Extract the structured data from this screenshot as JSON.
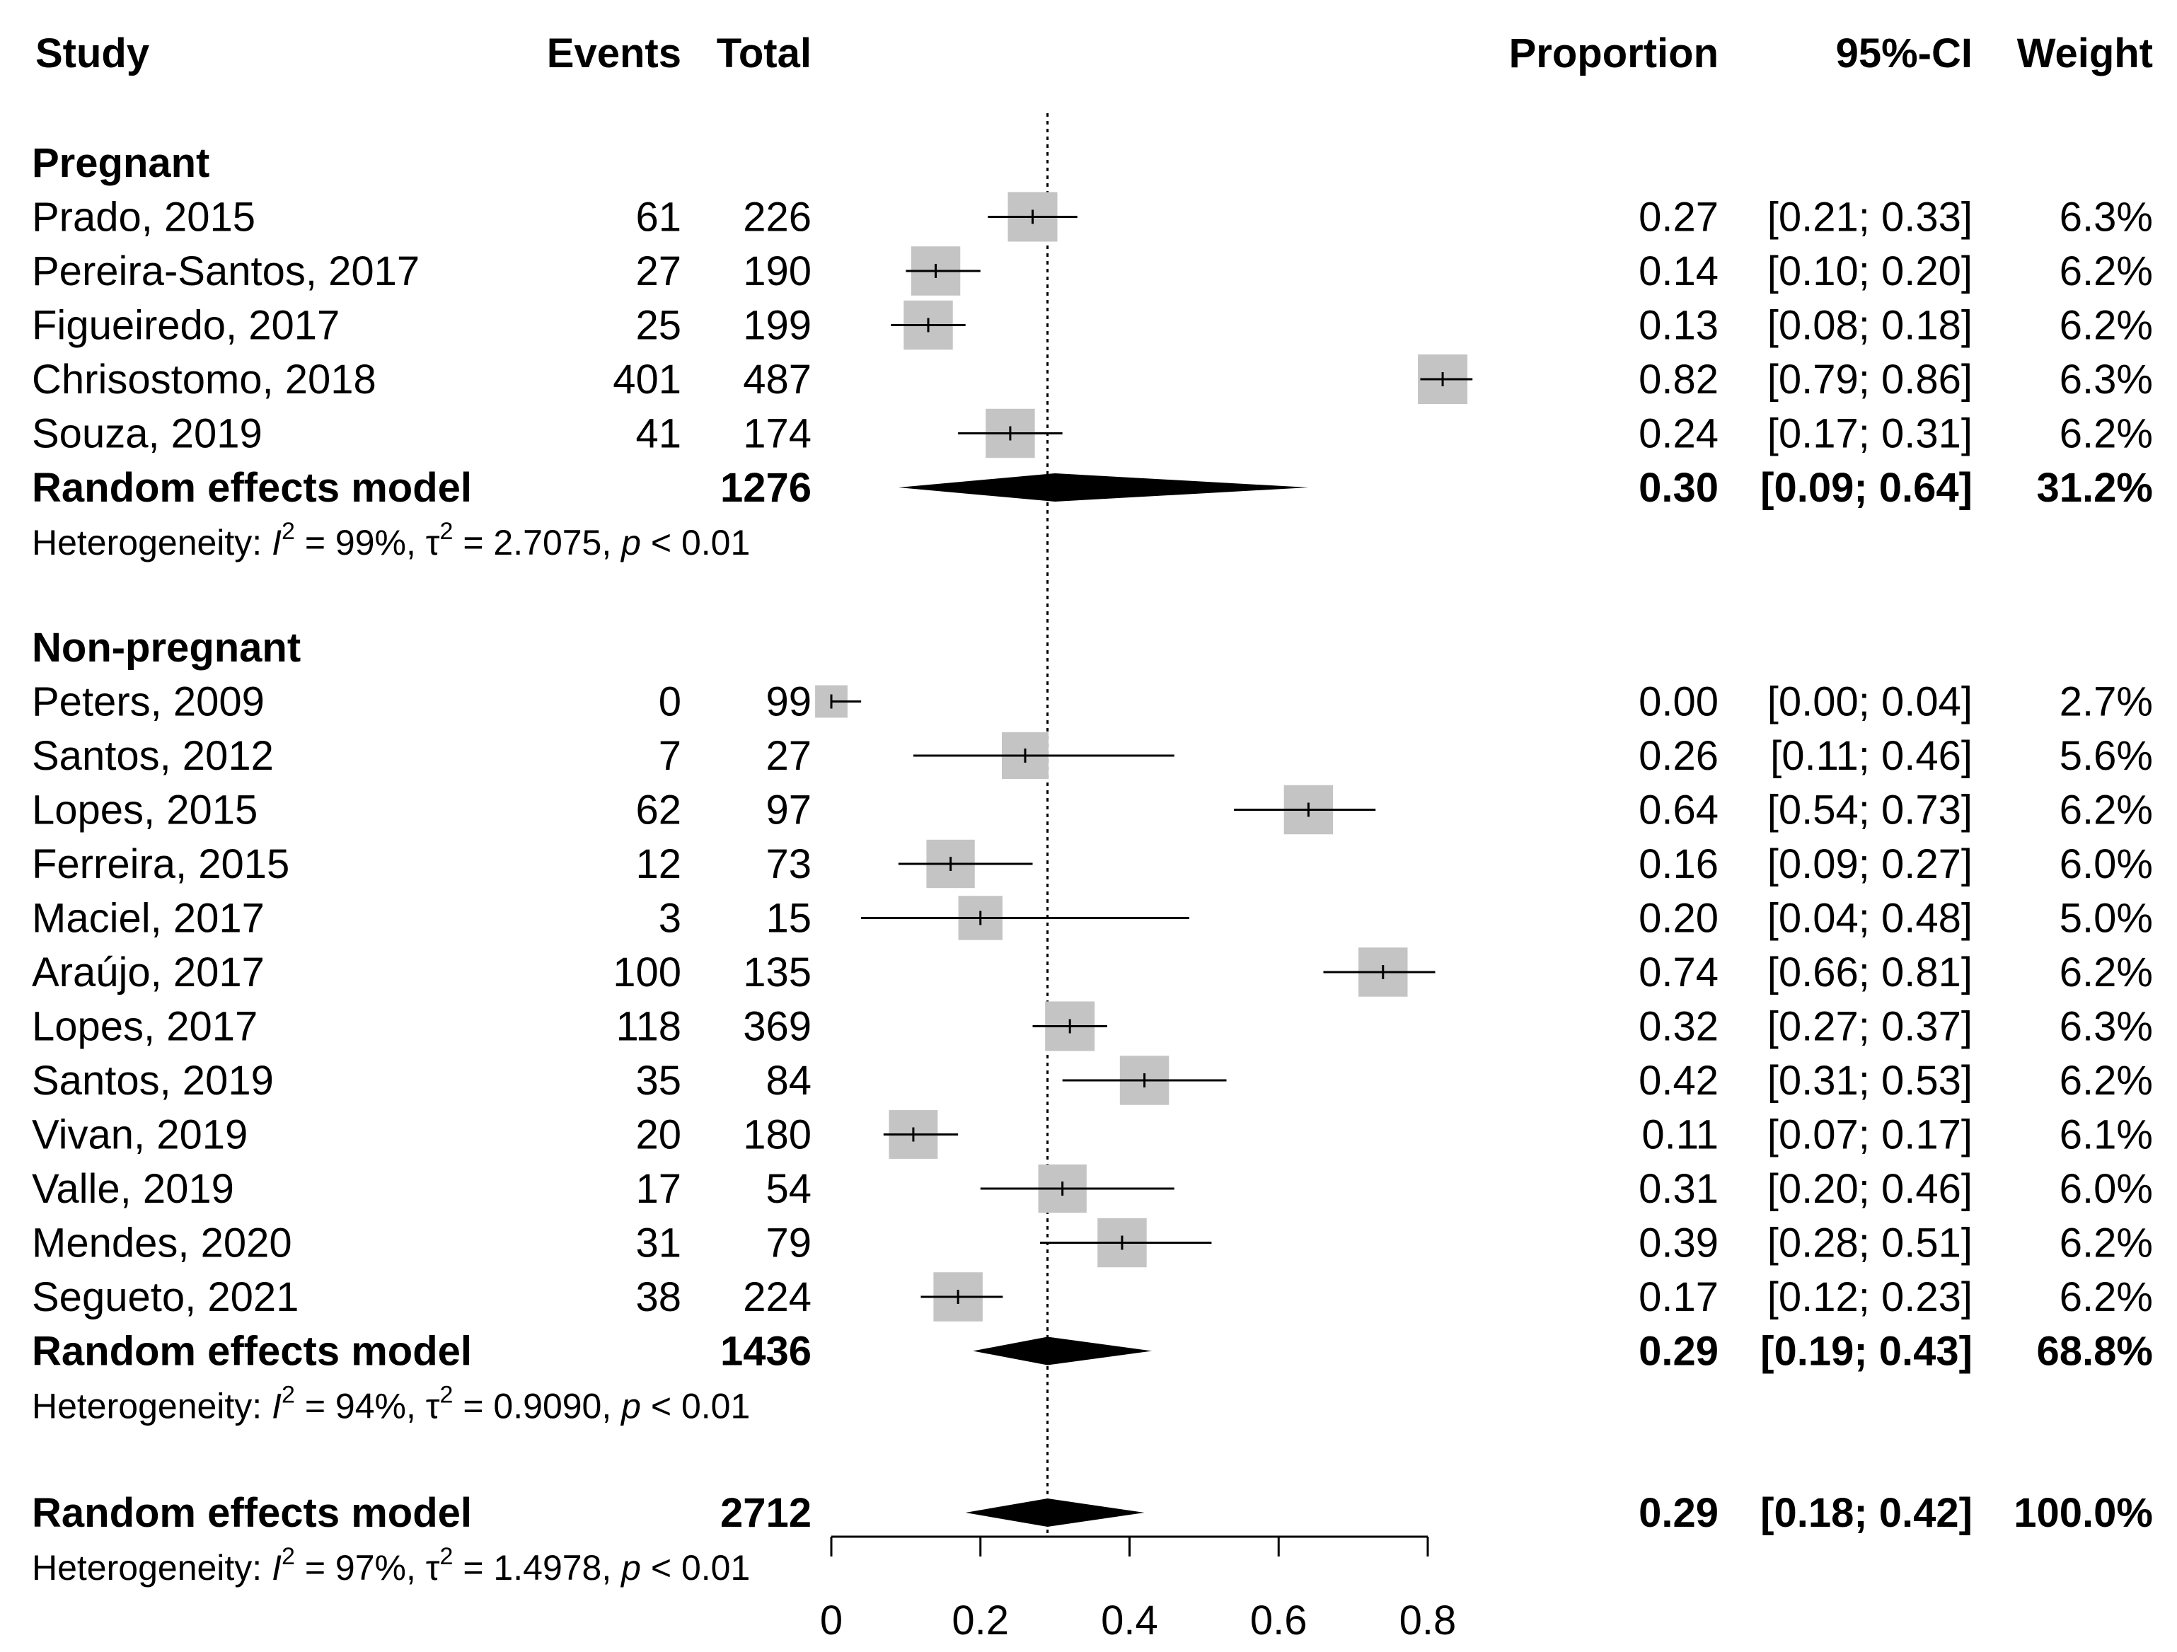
{
  "chart_data": {
    "type": "forest",
    "headers": {
      "study": "Study",
      "events": "Events",
      "total": "Total",
      "proportion": "Proportion",
      "ci": "95%-CI",
      "weight": "Weight"
    },
    "groups": [
      {
        "name": "Pregnant",
        "studies": [
          {
            "label": "Prado, 2015",
            "events": "61",
            "total": "226",
            "est": 0.27,
            "lo": 0.21,
            "hi": 0.33,
            "prop_text": "0.27",
            "ci_text": "[0.21; 0.33]",
            "weight": "6.3%",
            "w": 6.3
          },
          {
            "label": "Pereira-Santos, 2017",
            "events": "27",
            "total": "190",
            "est": 0.14,
            "lo": 0.1,
            "hi": 0.2,
            "prop_text": "0.14",
            "ci_text": "[0.10; 0.20]",
            "weight": "6.2%",
            "w": 6.2
          },
          {
            "label": "Figueiredo, 2017",
            "events": "25",
            "total": "199",
            "est": 0.13,
            "lo": 0.08,
            "hi": 0.18,
            "prop_text": "0.13",
            "ci_text": "[0.08; 0.18]",
            "weight": "6.2%",
            "w": 6.2
          },
          {
            "label": "Chrisostomo, 2018",
            "events": "401",
            "total": "487",
            "est": 0.82,
            "lo": 0.79,
            "hi": 0.86,
            "prop_text": "0.82",
            "ci_text": "[0.79; 0.86]",
            "weight": "6.3%",
            "w": 6.3
          },
          {
            "label": "Souza, 2019",
            "events": "41",
            "total": "174",
            "est": 0.24,
            "lo": 0.17,
            "hi": 0.31,
            "prop_text": "0.24",
            "ci_text": "[0.17; 0.31]",
            "weight": "6.2%",
            "w": 6.2
          }
        ],
        "summary": {
          "label": "Random effects model",
          "total": "1276",
          "est": 0.3,
          "lo": 0.09,
          "hi": 0.64,
          "prop_text": "0.30",
          "ci_text": "[0.09; 0.64]",
          "weight": "31.2%"
        },
        "heterogeneity": {
          "prefix": "Heterogeneity: ",
          "i_sym": "I",
          "sup": "2",
          "i_val": " = 99%, ",
          "tau_sym": "τ",
          "tau_val": " = 2.7075, ",
          "p_sym": "p",
          "p_val": " < 0.01"
        }
      },
      {
        "name": "Non-pregnant",
        "studies": [
          {
            "label": "Peters, 2009",
            "events": "0",
            "total": "99",
            "est": 0.0,
            "lo": 0.0,
            "hi": 0.04,
            "prop_text": "0.00",
            "ci_text": "[0.00; 0.04]",
            "weight": "2.7%",
            "w": 2.7
          },
          {
            "label": "Santos, 2012",
            "events": "7",
            "total": "27",
            "est": 0.26,
            "lo": 0.11,
            "hi": 0.46,
            "prop_text": "0.26",
            "ci_text": "[0.11; 0.46]",
            "weight": "5.6%",
            "w": 5.6
          },
          {
            "label": "Lopes, 2015",
            "events": "62",
            "total": "97",
            "est": 0.64,
            "lo": 0.54,
            "hi": 0.73,
            "prop_text": "0.64",
            "ci_text": "[0.54; 0.73]",
            "weight": "6.2%",
            "w": 6.2
          },
          {
            "label": "Ferreira, 2015",
            "events": "12",
            "total": "73",
            "est": 0.16,
            "lo": 0.09,
            "hi": 0.27,
            "prop_text": "0.16",
            "ci_text": "[0.09; 0.27]",
            "weight": "6.0%",
            "w": 6.0
          },
          {
            "label": "Maciel, 2017",
            "events": "3",
            "total": "15",
            "est": 0.2,
            "lo": 0.04,
            "hi": 0.48,
            "prop_text": "0.20",
            "ci_text": "[0.04; 0.48]",
            "weight": "5.0%",
            "w": 5.0
          },
          {
            "label": "Araújo, 2017",
            "events": "100",
            "total": "135",
            "est": 0.74,
            "lo": 0.66,
            "hi": 0.81,
            "prop_text": "0.74",
            "ci_text": "[0.66; 0.81]",
            "weight": "6.2%",
            "w": 6.2
          },
          {
            "label": "Lopes, 2017",
            "events": "118",
            "total": "369",
            "est": 0.32,
            "lo": 0.27,
            "hi": 0.37,
            "prop_text": "0.32",
            "ci_text": "[0.27; 0.37]",
            "weight": "6.3%",
            "w": 6.3
          },
          {
            "label": "Santos, 2019",
            "events": "35",
            "total": "84",
            "est": 0.42,
            "lo": 0.31,
            "hi": 0.53,
            "prop_text": "0.42",
            "ci_text": "[0.31; 0.53]",
            "weight": "6.2%",
            "w": 6.2
          },
          {
            "label": "Vivan, 2019",
            "events": "20",
            "total": "180",
            "est": 0.11,
            "lo": 0.07,
            "hi": 0.17,
            "prop_text": "0.11",
            "ci_text": "[0.07; 0.17]",
            "weight": "6.1%",
            "w": 6.1
          },
          {
            "label": "Valle, 2019",
            "events": "17",
            "total": "54",
            "est": 0.31,
            "lo": 0.2,
            "hi": 0.46,
            "prop_text": "0.31",
            "ci_text": "[0.20; 0.46]",
            "weight": "6.0%",
            "w": 6.0
          },
          {
            "label": "Mendes, 2020",
            "events": "31",
            "total": "79",
            "est": 0.39,
            "lo": 0.28,
            "hi": 0.51,
            "prop_text": "0.39",
            "ci_text": "[0.28; 0.51]",
            "weight": "6.2%",
            "w": 6.2
          },
          {
            "label": "Segueto, 2021",
            "events": "38",
            "total": "224",
            "est": 0.17,
            "lo": 0.12,
            "hi": 0.23,
            "prop_text": "0.17",
            "ci_text": "[0.12; 0.23]",
            "weight": "6.2%",
            "w": 6.2
          }
        ],
        "summary": {
          "label": "Random effects model",
          "total": "1436",
          "est": 0.29,
          "lo": 0.19,
          "hi": 0.43,
          "prop_text": "0.29",
          "ci_text": "[0.19; 0.43]",
          "weight": "68.8%"
        },
        "heterogeneity": {
          "prefix": "Heterogeneity: ",
          "i_sym": "I",
          "sup": "2",
          "i_val": " = 94%, ",
          "tau_sym": "τ",
          "tau_val": " = 0.9090, ",
          "p_sym": "p",
          "p_val": " < 0.01"
        }
      }
    ],
    "overall": {
      "label": "Random effects model",
      "total": "2712",
      "est": 0.29,
      "lo": 0.18,
      "hi": 0.42,
      "prop_text": "0.29",
      "ci_text": "[0.18; 0.42]",
      "weight": "100.0%",
      "heterogeneity": {
        "prefix": "Heterogeneity: ",
        "i_sym": "I",
        "sup": "2",
        "i_val": " = 97%, ",
        "tau_sym": "τ",
        "tau_val": " = 1.4978, ",
        "p_sym": "p",
        "p_val": " < 0.01"
      }
    },
    "reference_line": 0.29,
    "xlim": [
      0,
      0.8
    ],
    "xticks": [
      {
        "value": 0,
        "label": "0"
      },
      {
        "value": 0.2,
        "label": "0.2"
      },
      {
        "value": 0.4,
        "label": "0.4"
      },
      {
        "value": 0.6,
        "label": "0.6"
      },
      {
        "value": 0.8,
        "label": "0.8"
      }
    ]
  }
}
